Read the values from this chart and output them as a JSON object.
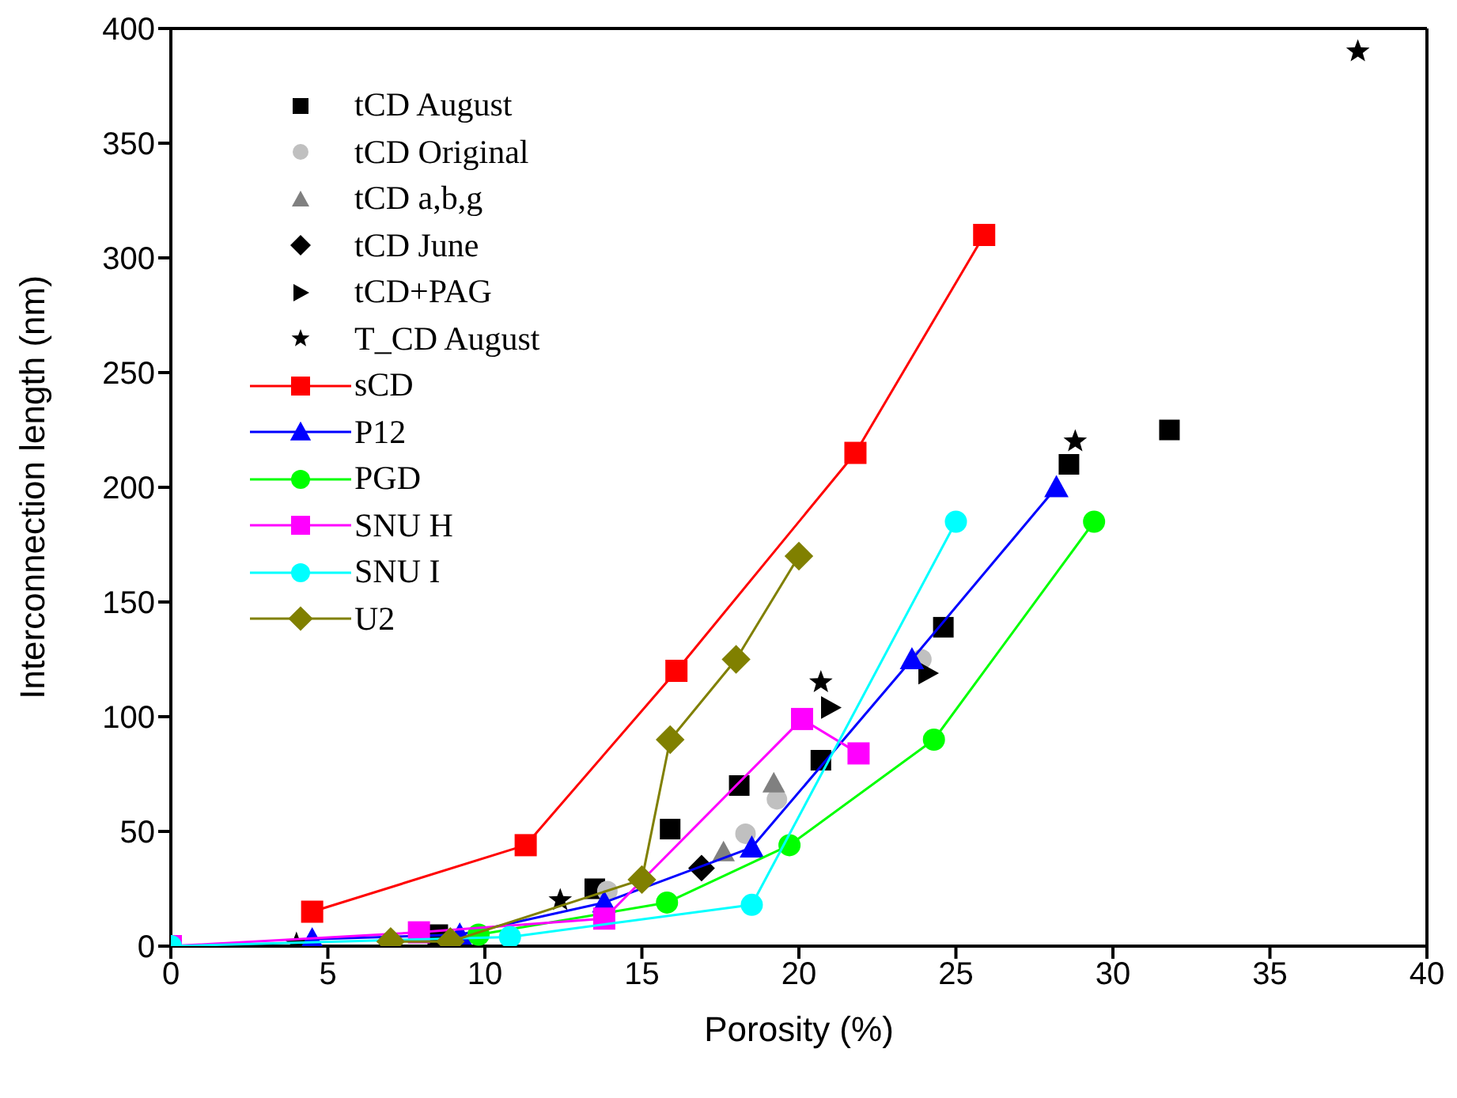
{
  "chart_data": {
    "type": "scatter",
    "xlabel": "Porosity (%)",
    "ylabel": "Interconnection length (nm)",
    "xlim": [
      0,
      40
    ],
    "ylim": [
      0,
      400
    ],
    "xticks": [
      0,
      5,
      10,
      15,
      20,
      25,
      30,
      35,
      40
    ],
    "yticks": [
      0,
      50,
      100,
      150,
      200,
      250,
      300,
      350,
      400
    ],
    "grid": false,
    "legend": "top left",
    "series": [
      {
        "name": "tCD August",
        "marker": "square",
        "color": "#000000",
        "x": [
          8.5,
          13.5,
          15.9,
          18.1,
          20.7,
          24.6,
          28.6,
          31.8
        ],
        "values": [
          5,
          25,
          51,
          70,
          81,
          139,
          210,
          225
        ]
      },
      {
        "name": "tCD Original",
        "marker": "circle",
        "color": "#c0c0c0",
        "x": [
          13.9,
          18.3,
          19.3,
          23.9
        ],
        "values": [
          24,
          49,
          64,
          125
        ]
      },
      {
        "name": "tCD a,b,g",
        "marker": "triangle",
        "color": "#808080",
        "x": [
          17.6,
          19.2
        ],
        "values": [
          41,
          71
        ]
      },
      {
        "name": "tCD June",
        "marker": "diamond",
        "color": "#000000",
        "x": [
          16.9
        ],
        "values": [
          34
        ]
      },
      {
        "name": "tCD+PAG",
        "marker": "triangle-right",
        "color": "#000000",
        "x": [
          21.0,
          24.1
        ],
        "values": [
          104,
          119
        ]
      },
      {
        "name": "T_CD August",
        "marker": "star",
        "color": "#000000",
        "x": [
          4.0,
          12.4,
          20.7,
          28.8,
          37.8
        ],
        "values": [
          1,
          20,
          115,
          220,
          390
        ]
      },
      {
        "name": "sCD",
        "type": "line",
        "marker": "square",
        "color": "#ff0000",
        "x": [
          4.5,
          11.3,
          16.1,
          21.8,
          25.9
        ],
        "values": [
          15,
          44,
          120,
          215,
          310
        ]
      },
      {
        "name": "P12",
        "type": "line",
        "marker": "triangle",
        "color": "#0000ff",
        "x": [
          4.5,
          9.2,
          13.8,
          18.5,
          23.6,
          28.2
        ],
        "values": [
          3,
          5,
          19,
          43,
          125,
          200
        ]
      },
      {
        "name": "PGD",
        "type": "line",
        "marker": "circle",
        "color": "#00ff00",
        "x": [
          9.8,
          15.8,
          19.7,
          24.3,
          29.4
        ],
        "values": [
          5,
          19,
          44,
          90,
          185
        ]
      },
      {
        "name": "SNU H",
        "type": "line",
        "marker": "square",
        "color": "#ff00ff",
        "x": [
          0,
          7.9,
          13.8,
          20.1,
          21.9
        ],
        "values": [
          0,
          6,
          12,
          99,
          84
        ]
      },
      {
        "name": "SNU I",
        "type": "line",
        "marker": "circle",
        "color": "#00ffff",
        "x": [
          0,
          10.8,
          18.5,
          25.0
        ],
        "values": [
          0,
          4,
          18,
          185
        ]
      },
      {
        "name": "U2",
        "type": "line",
        "marker": "diamond",
        "color": "#808000",
        "x": [
          7.0,
          8.9,
          15.0,
          15.9,
          18.0,
          20.0
        ],
        "values": [
          2,
          2,
          29,
          90,
          125,
          170
        ]
      }
    ]
  }
}
